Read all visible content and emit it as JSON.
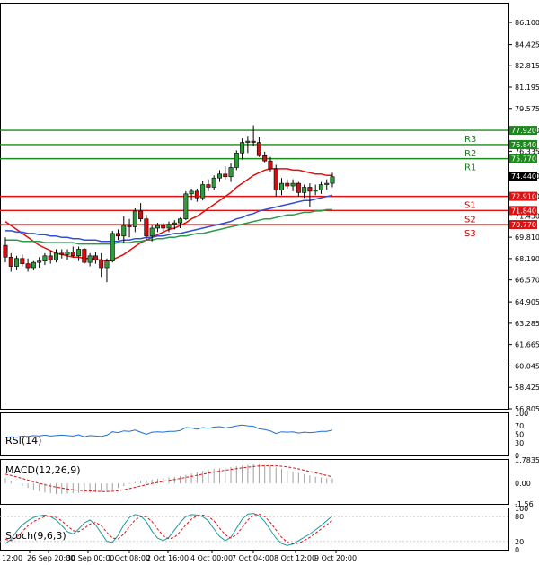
{
  "chart_data": [
    {
      "type": "candlestick",
      "panel": "price",
      "ylim": [
        56.805,
        87.6
      ],
      "y_ticks": [
        "86.100",
        "84.425",
        "82.815",
        "81.195",
        "79.575",
        "77.920",
        "76.335",
        "74.440",
        "72.910",
        "71.430",
        "69.810",
        "68.190",
        "66.570",
        "64.905",
        "63.285",
        "61.665",
        "60.045",
        "58.425",
        "56.805"
      ],
      "x_ticks": [
        "12:00",
        "26 Sep 20:00",
        "30 Sep 00:00",
        "1 Oct 08:00",
        "2 Oct 16:00",
        "4 Oct 00:00",
        "7 Oct 04:00",
        "8 Oct 12:00",
        "9 Oct 20:00"
      ],
      "candles": [
        [
          69.2,
          69.8,
          67.9,
          68.3
        ],
        [
          68.3,
          68.6,
          67.2,
          67.6
        ],
        [
          67.6,
          68.4,
          67.3,
          68.2
        ],
        [
          68.2,
          68.5,
          67.6,
          67.8
        ],
        [
          67.8,
          68.2,
          67.2,
          67.5
        ],
        [
          67.5,
          68.0,
          67.3,
          67.9
        ],
        [
          67.9,
          68.3,
          67.5,
          68.0
        ],
        [
          68.0,
          68.6,
          67.7,
          68.4
        ],
        [
          68.4,
          68.8,
          67.8,
          68.1
        ],
        [
          68.1,
          68.9,
          67.9,
          68.6
        ],
        [
          68.6,
          68.9,
          68.2,
          68.5
        ],
        [
          68.5,
          68.9,
          68.1,
          68.7
        ],
        [
          68.7,
          69.1,
          68.3,
          68.4
        ],
        [
          68.4,
          69.1,
          68.0,
          68.9
        ],
        [
          68.9,
          69.0,
          67.8,
          67.9
        ],
        [
          67.9,
          68.6,
          67.6,
          68.4
        ],
        [
          68.4,
          68.7,
          67.8,
          68.1
        ],
        [
          68.1,
          68.6,
          66.8,
          67.5
        ],
        [
          67.5,
          68.2,
          66.4,
          68.0
        ],
        [
          68.0,
          70.3,
          67.9,
          70.1
        ],
        [
          70.1,
          70.4,
          69.6,
          69.9
        ],
        [
          69.9,
          71.4,
          69.4,
          70.7
        ],
        [
          70.7,
          71.2,
          69.8,
          70.6
        ],
        [
          70.6,
          72.0,
          70.2,
          71.8
        ],
        [
          71.8,
          72.4,
          71.0,
          71.2
        ],
        [
          71.2,
          71.5,
          69.6,
          69.9
        ],
        [
          69.9,
          70.7,
          69.5,
          70.5
        ],
        [
          70.5,
          70.9,
          70.2,
          70.7
        ],
        [
          70.7,
          70.9,
          70.3,
          70.5
        ],
        [
          70.5,
          71.0,
          70.2,
          70.8
        ],
        [
          70.8,
          71.1,
          70.4,
          70.9
        ],
        [
          70.9,
          71.3,
          70.5,
          71.2
        ],
        [
          71.2,
          73.3,
          71.1,
          73.1
        ],
        [
          73.1,
          73.5,
          72.6,
          73.3
        ],
        [
          73.3,
          73.5,
          72.5,
          72.8
        ],
        [
          72.8,
          74.1,
          72.6,
          73.8
        ],
        [
          73.8,
          74.2,
          73.3,
          73.6
        ],
        [
          73.6,
          74.5,
          73.4,
          74.3
        ],
        [
          74.3,
          74.9,
          74.0,
          74.6
        ],
        [
          74.6,
          75.2,
          74.2,
          74.4
        ],
        [
          74.4,
          75.4,
          74.0,
          75.1
        ],
        [
          75.1,
          76.4,
          74.9,
          76.2
        ],
        [
          76.2,
          77.3,
          75.7,
          77.0
        ],
        [
          77.0,
          77.5,
          76.2,
          77.1
        ],
        [
          77.1,
          78.3,
          76.7,
          77.0
        ],
        [
          77.0,
          77.4,
          75.9,
          76.0
        ],
        [
          76.0,
          76.3,
          75.5,
          75.6
        ],
        [
          75.6,
          75.9,
          74.8,
          75.0
        ],
        [
          75.0,
          75.3,
          72.9,
          73.4
        ],
        [
          73.4,
          74.3,
          73.0,
          73.9
        ],
        [
          73.9,
          74.2,
          73.5,
          73.7
        ],
        [
          73.7,
          74.2,
          73.3,
          73.9
        ],
        [
          73.9,
          74.0,
          72.9,
          73.2
        ],
        [
          73.2,
          73.8,
          72.8,
          73.6
        ],
        [
          73.6,
          73.9,
          72.1,
          73.3
        ],
        [
          73.3,
          73.8,
          73.0,
          73.4
        ],
        [
          73.4,
          74.0,
          73.1,
          73.8
        ],
        [
          73.8,
          74.2,
          73.4,
          73.9
        ],
        [
          73.9,
          74.7,
          73.6,
          74.4
        ]
      ],
      "moving_averages": [
        {
          "color": "#e01010",
          "values": [
            71.0,
            70.7,
            70.4,
            70.1,
            69.8,
            69.5,
            69.2,
            69.0,
            68.8,
            68.6,
            68.5,
            68.4,
            68.3,
            68.3,
            68.2,
            68.2,
            68.1,
            68.1,
            68.0,
            68.1,
            68.3,
            68.5,
            68.8,
            69.1,
            69.4,
            69.6,
            69.8,
            70.0,
            70.2,
            70.4,
            70.5,
            70.7,
            70.9,
            71.2,
            71.4,
            71.7,
            72.0,
            72.3,
            72.6,
            72.9,
            73.2,
            73.6,
            73.9,
            74.2,
            74.5,
            74.7,
            74.9,
            75.0,
            75.0,
            75.0,
            75.0,
            74.9,
            74.9,
            74.8,
            74.7,
            74.6,
            74.6,
            74.5,
            74.5
          ]
        },
        {
          "color": "#3050d0",
          "values": [
            70.3,
            70.3,
            70.2,
            70.2,
            70.1,
            70.1,
            70.0,
            70.0,
            69.9,
            69.9,
            69.8,
            69.8,
            69.7,
            69.7,
            69.6,
            69.6,
            69.6,
            69.5,
            69.5,
            69.5,
            69.5,
            69.6,
            69.6,
            69.7,
            69.7,
            69.8,
            69.8,
            69.9,
            69.9,
            70.0,
            70.1,
            70.1,
            70.2,
            70.3,
            70.4,
            70.5,
            70.6,
            70.7,
            70.8,
            70.9,
            71.0,
            71.2,
            71.3,
            71.5,
            71.6,
            71.8,
            71.9,
            72.0,
            72.1,
            72.2,
            72.3,
            72.4,
            72.5,
            72.6,
            72.6,
            72.7,
            72.8,
            72.9,
            73.0
          ]
        },
        {
          "color": "#2a9a4a",
          "values": [
            69.6,
            69.6,
            69.6,
            69.5,
            69.5,
            69.5,
            69.5,
            69.4,
            69.4,
            69.4,
            69.4,
            69.4,
            69.4,
            69.3,
            69.3,
            69.3,
            69.3,
            69.3,
            69.3,
            69.3,
            69.4,
            69.4,
            69.4,
            69.5,
            69.5,
            69.6,
            69.6,
            69.7,
            69.7,
            69.8,
            69.8,
            69.9,
            69.9,
            70.0,
            70.1,
            70.1,
            70.2,
            70.3,
            70.4,
            70.5,
            70.6,
            70.7,
            70.8,
            70.9,
            71.0,
            71.1,
            71.2,
            71.2,
            71.3,
            71.4,
            71.5,
            71.5,
            71.6,
            71.7,
            71.7,
            71.8,
            71.8,
            71.9,
            71.9
          ]
        }
      ],
      "levels": [
        {
          "name": "R3",
          "value": 77.92,
          "label": "77.920",
          "color": "#1a8a1a"
        },
        {
          "name": "R2",
          "value": 76.84,
          "label": "76.840",
          "color": "#1a8a1a"
        },
        {
          "name": "R1",
          "value": 75.77,
          "label": "75.770",
          "color": "#1a8a1a"
        },
        {
          "name": "S1",
          "value": 72.91,
          "label": "72.910",
          "color": "#e01010"
        },
        {
          "name": "S2",
          "value": 71.84,
          "label": "71.840",
          "color": "#e01010"
        },
        {
          "name": "S3",
          "value": 70.77,
          "label": "70.770",
          "color": "#e01010"
        }
      ],
      "current_price": {
        "value": 74.44,
        "label": "74.440",
        "color": "#000000"
      }
    },
    {
      "type": "line",
      "panel": "rsi",
      "title": "RSI(14)",
      "ylim": [
        0,
        100
      ],
      "y_ticks": [
        "100",
        "70",
        "50",
        "30",
        "0"
      ],
      "series": [
        {
          "color": "#1e6fd9",
          "values": [
            42,
            44,
            43,
            46,
            45,
            47,
            46,
            48,
            46,
            47,
            48,
            47,
            46,
            49,
            44,
            47,
            46,
            45,
            48,
            56,
            54,
            58,
            57,
            60,
            55,
            50,
            55,
            56,
            55,
            57,
            57,
            59,
            66,
            65,
            62,
            66,
            64,
            67,
            68,
            65,
            67,
            70,
            72,
            70,
            69,
            63,
            61,
            58,
            52,
            56,
            55,
            56,
            53,
            55,
            54,
            55,
            57,
            57,
            60
          ]
        }
      ]
    },
    {
      "type": "histogram",
      "panel": "macd",
      "title": "MACD(12,26,9)",
      "ylim": [
        -1.56,
        1.7835
      ],
      "y_ticks": [
        "1.7835",
        "0.00",
        "-1.56"
      ],
      "series": [
        {
          "name": "",
          "values": [
            0.4,
            0.2,
            0.0,
            -0.2,
            -0.35,
            -0.5,
            -0.6,
            -0.7,
            -0.75,
            -0.8,
            -0.8,
            -0.78,
            -0.75,
            -0.72,
            -0.72,
            -0.7,
            -0.68,
            -0.66,
            -0.65,
            -0.5,
            -0.35,
            -0.2,
            -0.05,
            0.1,
            0.2,
            0.25,
            0.3,
            0.35,
            0.4,
            0.45,
            0.5,
            0.55,
            0.65,
            0.75,
            0.85,
            0.95,
            1.05,
            1.1,
            1.15,
            1.2,
            1.25,
            1.3,
            1.35,
            1.4,
            1.45,
            1.45,
            1.4,
            1.35,
            1.2,
            1.1,
            1.0,
            0.9,
            0.8,
            0.7,
            0.6,
            0.5,
            0.45,
            0.4,
            0.38
          ]
        },
        {
          "name": "",
          "color": "#e01010",
          "values": [
            0.7,
            0.6,
            0.5,
            0.38,
            0.25,
            0.12,
            0.0,
            -0.1,
            -0.2,
            -0.28,
            -0.35,
            -0.42,
            -0.48,
            -0.52,
            -0.55,
            -0.58,
            -0.6,
            -0.62,
            -0.62,
            -0.6,
            -0.55,
            -0.48,
            -0.4,
            -0.3,
            -0.2,
            -0.1,
            0.0,
            0.08,
            0.15,
            0.22,
            0.3,
            0.37,
            0.45,
            0.53,
            0.62,
            0.7,
            0.78,
            0.86,
            0.93,
            1.0,
            1.06,
            1.12,
            1.18,
            1.23,
            1.28,
            1.32,
            1.34,
            1.35,
            1.33,
            1.3,
            1.25,
            1.18,
            1.1,
            1.0,
            0.9,
            0.8,
            0.7,
            0.6,
            0.5
          ]
        }
      ]
    },
    {
      "type": "line",
      "panel": "stoch",
      "title": "Stoch(9,6,3)",
      "ylim": [
        0,
        100
      ],
      "y_ticks": [
        "100",
        "80",
        "20",
        "0"
      ],
      "series": [
        {
          "color": "#1a9aa0",
          "values": [
            15,
            25,
            45,
            60,
            70,
            78,
            82,
            84,
            80,
            72,
            58,
            44,
            38,
            50,
            65,
            72,
            60,
            40,
            20,
            18,
            35,
            60,
            78,
            85,
            82,
            68,
            45,
            28,
            22,
            30,
            48,
            66,
            80,
            85,
            84,
            80,
            70,
            50,
            32,
            22,
            30,
            52,
            74,
            86,
            88,
            82,
            68,
            48,
            28,
            15,
            10,
            14,
            22,
            30,
            38,
            48,
            58,
            70,
            82
          ]
        },
        {
          "name": "",
          "color": "#e01010",
          "values": [
            25,
            22,
            30,
            44,
            58,
            68,
            75,
            80,
            82,
            78,
            70,
            58,
            46,
            44,
            52,
            62,
            66,
            58,
            42,
            28,
            26,
            38,
            56,
            72,
            80,
            80,
            68,
            50,
            34,
            26,
            30,
            44,
            60,
            74,
            82,
            84,
            80,
            70,
            52,
            36,
            28,
            36,
            54,
            72,
            84,
            86,
            80,
            66,
            48,
            30,
            18,
            14,
            16,
            22,
            30,
            40,
            50,
            60,
            72
          ]
        }
      ]
    }
  ]
}
